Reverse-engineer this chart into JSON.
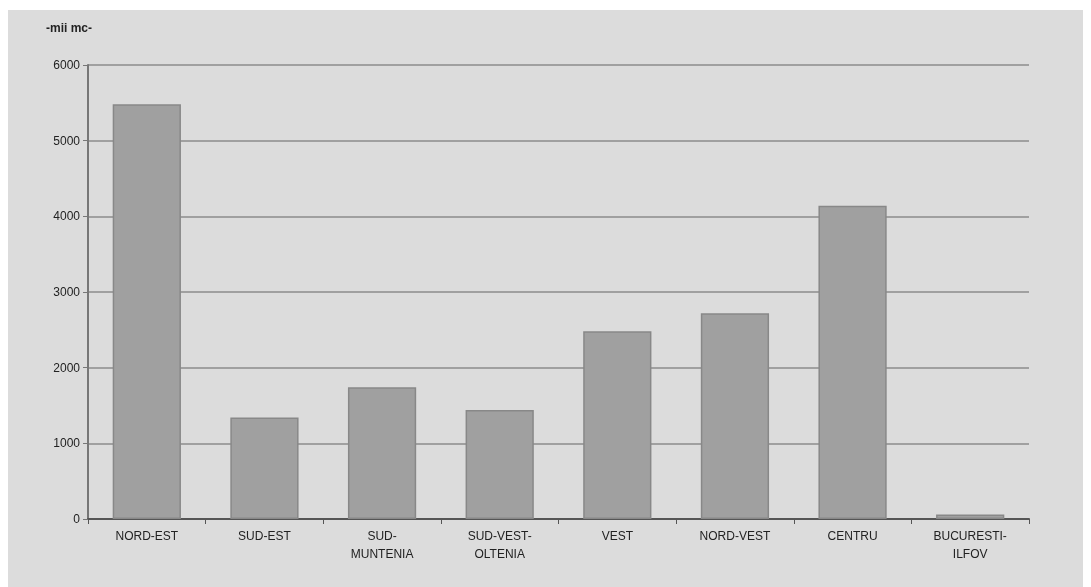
{
  "chart_data": {
    "type": "bar",
    "ylabel": "-mii mc-",
    "categories": [
      "NORD-EST",
      "SUD-EST",
      "SUD-MUNTENIA",
      "SUD-VEST-OLTENIA",
      "VEST",
      "NORD-VEST",
      "CENTRU",
      "BUCURESTI-ILFOV"
    ],
    "values": [
      5480,
      1340,
      1740,
      1440,
      2480,
      2720,
      4140,
      60
    ],
    "color": "#a0a0a0",
    "ylim": [
      0,
      6000
    ],
    "yticks": [
      0,
      1000,
      2000,
      3000,
      4000,
      5000,
      6000
    ],
    "grid": "y"
  }
}
